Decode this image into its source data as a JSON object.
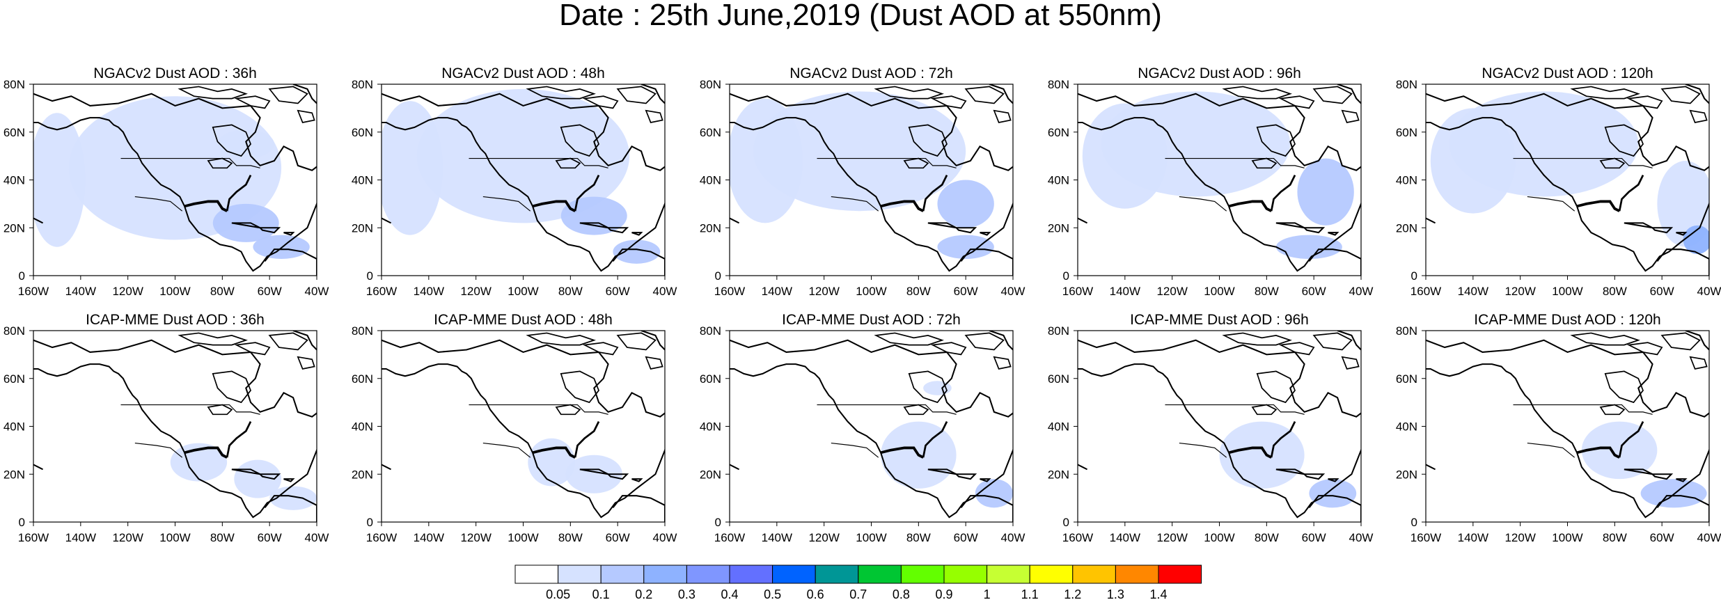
{
  "title": "Date : 25th June,2019 (Dust AOD at 550nm)",
  "map": {
    "x_ticks": [
      "160W",
      "140W",
      "120W",
      "100W",
      "80W",
      "60W",
      "40W"
    ],
    "y_ticks": [
      "80N",
      "60N",
      "40N",
      "20N",
      "0"
    ],
    "lon_range": [
      -160,
      -40
    ],
    "lat_range": [
      0,
      80
    ]
  },
  "panels": [
    {
      "title": "NGACv2 Dust AOD : 36h"
    },
    {
      "title": "NGACv2 Dust AOD : 48h"
    },
    {
      "title": "NGACv2 Dust AOD : 72h"
    },
    {
      "title": "NGACv2 Dust AOD : 96h"
    },
    {
      "title": "NGACv2 Dust AOD : 120h"
    },
    {
      "title": "ICAP-MME Dust AOD : 36h"
    },
    {
      "title": "ICAP-MME Dust AOD : 48h"
    },
    {
      "title": "ICAP-MME Dust AOD : 72h"
    },
    {
      "title": "ICAP-MME Dust AOD : 96h"
    },
    {
      "title": "ICAP-MME Dust AOD : 120h"
    }
  ],
  "colorbar": {
    "levels": [
      "0.05",
      "0.1",
      "0.2",
      "0.3",
      "0.4",
      "0.5",
      "0.6",
      "0.7",
      "0.8",
      "0.9",
      "1",
      "1.1",
      "1.2",
      "1.3",
      "1.4"
    ],
    "colors": [
      "#ffffff",
      "#d6e2ff",
      "#b5c9ff",
      "#8eb2ff",
      "#7f96ff",
      "#6370ff",
      "#0063ff",
      "#009696",
      "#00c633",
      "#63ff00",
      "#96ff00",
      "#c6ff33",
      "#ffff00",
      "#ffc400",
      "#ff8700",
      "#ff0000"
    ]
  }
}
